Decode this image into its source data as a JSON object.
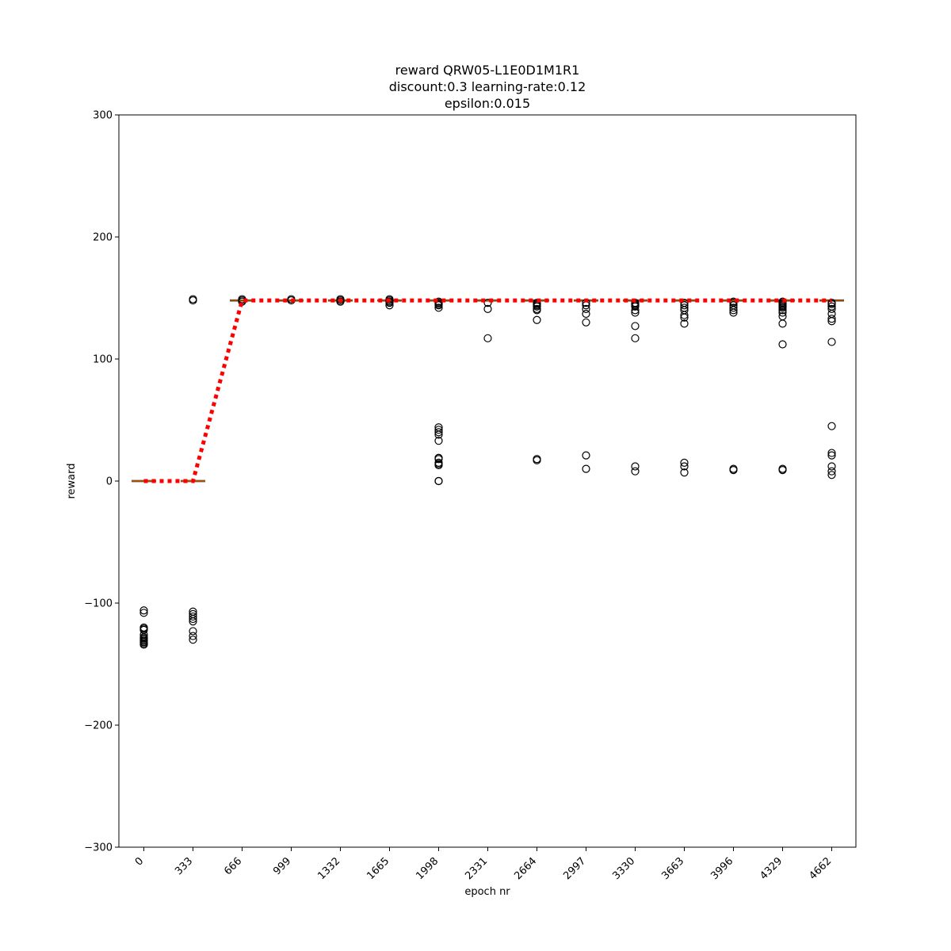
{
  "chart_data": {
    "type": "box",
    "title_lines": [
      "reward QRW05-L1E0D1M1R1",
      "discount:0.3 learning-rate:0.12",
      "epsilon:0.015"
    ],
    "xlabel": "epoch nr",
    "ylabel": "reward",
    "ylim": [
      -300,
      300
    ],
    "yticks": [
      -300,
      -200,
      -100,
      0,
      100,
      200,
      300
    ],
    "categories": [
      "0",
      "333",
      "666",
      "999",
      "1332",
      "1665",
      "1998",
      "2331",
      "2664",
      "2997",
      "3330",
      "3663",
      "3996",
      "4329",
      "4662"
    ],
    "medians": [
      0,
      0,
      148,
      148,
      148,
      148,
      148,
      148,
      148,
      148,
      148,
      148,
      148,
      148,
      148
    ],
    "mean_line": [
      0,
      0,
      148,
      148,
      148,
      148,
      148,
      148,
      148,
      148,
      148,
      148,
      148,
      148,
      148
    ],
    "outliers": [
      [
        -106,
        -108,
        -120,
        -121,
        -122,
        -126,
        -128,
        -129,
        -130,
        -131,
        -132,
        -133,
        -134
      ],
      [
        148,
        149,
        -107,
        -109,
        -111,
        -113,
        -115,
        -123,
        -127,
        -130
      ],
      [
        147,
        148,
        149
      ],
      [
        148,
        149
      ],
      [
        147,
        148,
        149
      ],
      [
        144,
        146,
        147,
        148,
        149
      ],
      [
        0,
        0,
        13,
        14,
        15,
        18,
        19,
        33,
        38,
        40,
        42,
        44,
        142,
        144,
        145,
        146,
        147
      ],
      [
        117,
        141,
        146
      ],
      [
        17,
        18,
        132,
        140,
        141,
        143,
        144,
        145,
        146
      ],
      [
        10,
        21,
        130,
        137,
        141,
        144,
        146
      ],
      [
        8,
        12,
        117,
        127,
        138,
        140,
        143,
        144,
        145,
        146
      ],
      [
        7,
        12,
        15,
        129,
        134,
        136,
        140,
        142,
        144,
        146
      ],
      [
        9,
        10,
        138,
        140,
        142,
        144,
        146,
        147
      ],
      [
        9,
        10,
        112,
        129,
        135,
        138,
        140,
        142,
        143,
        144,
        145,
        146,
        147
      ],
      [
        5,
        8,
        12,
        21,
        23,
        45,
        114,
        131,
        133,
        137,
        141,
        143,
        145,
        146
      ]
    ],
    "colors": {
      "mean_line": "#ff0000",
      "median": "#ff7f0e",
      "box": "#000000",
      "outlier": "#000000"
    },
    "grid": false,
    "legend": "none"
  }
}
